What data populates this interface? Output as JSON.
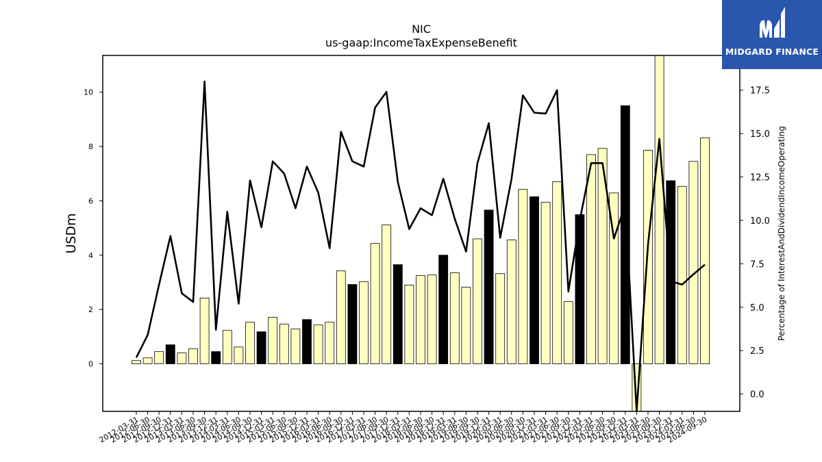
{
  "title": "NIC",
  "subtitle": "us-gaap:IncomeTaxExpenseBenefit",
  "logo": {
    "text": "MIDGARD FINANCE",
    "bg": "#2a56ad"
  },
  "colors": {
    "bar_fill": "#ffffc0",
    "bar_highlight": "#000000",
    "line": "#000000"
  },
  "chart_data": {
    "type": "bar",
    "title": "NIC",
    "subtitle": "us-gaap:IncomeTaxExpenseBenefit",
    "xlabel": "",
    "ylabel": "USDm",
    "y2label": "Percentage of InterestAndDividendIncomeOperating",
    "ylim": [
      -1.75,
      11.35
    ],
    "y2lim": [
      -1.0,
      19.5
    ],
    "yticks": [
      0,
      2,
      4,
      6,
      8,
      10
    ],
    "y2ticks": [
      0.0,
      2.5,
      5.0,
      7.5,
      10.0,
      12.5,
      15.0,
      17.5
    ],
    "categories": [
      "2012-03-31",
      "2012-06-30",
      "2012-09-30",
      "2012-12-31",
      "2013-03-31",
      "2013-06-30",
      "2013-09-30",
      "2013-12-31",
      "2014-03-31",
      "2014-06-30",
      "2014-09-30",
      "2014-12-31",
      "2015-03-31",
      "2015-06-30",
      "2015-09-30",
      "2015-12-31",
      "2016-03-31",
      "2016-06-30",
      "2016-09-30",
      "2016-12-31",
      "2017-03-31",
      "2017-06-30",
      "2017-09-30",
      "2017-12-31",
      "2018-03-31",
      "2018-06-30",
      "2018-09-30",
      "2018-12-31",
      "2019-03-31",
      "2019-06-30",
      "2019-09-30",
      "2019-12-31",
      "2020-03-31",
      "2020-06-30",
      "2020-09-30",
      "2020-12-31",
      "2021-03-31",
      "2021-06-30",
      "2021-09-30",
      "2021-12-31",
      "2022-03-31",
      "2022-06-30",
      "2022-09-30",
      "2022-12-31",
      "2023-03-31",
      "2023-06-30",
      "2023-09-30",
      "2023-12-31",
      "2024-03-31",
      "2024-06-30",
      "2024-09-30"
    ],
    "series": [
      {
        "axis": "left",
        "kind": "bar",
        "values": [
          0.12,
          0.22,
          0.45,
          0.7,
          0.4,
          0.55,
          2.42,
          0.45,
          1.23,
          0.62,
          1.53,
          1.18,
          1.71,
          1.46,
          1.28,
          1.63,
          1.43,
          1.53,
          3.42,
          2.92,
          3.02,
          4.43,
          5.11,
          3.65,
          2.9,
          3.25,
          3.27,
          4.0,
          3.35,
          2.82,
          4.6,
          5.66,
          3.32,
          4.56,
          6.42,
          6.15,
          5.95,
          6.7,
          2.29,
          5.49,
          7.7,
          7.93,
          6.29,
          9.5,
          -1.8,
          7.86,
          11.4,
          6.74,
          6.53,
          7.45,
          8.32
        ],
        "highlight": [
          false,
          false,
          false,
          true,
          false,
          false,
          false,
          true,
          false,
          false,
          false,
          true,
          false,
          false,
          false,
          true,
          false,
          false,
          false,
          true,
          false,
          false,
          false,
          true,
          false,
          false,
          false,
          true,
          false,
          false,
          false,
          true,
          false,
          false,
          false,
          true,
          false,
          false,
          false,
          true,
          false,
          false,
          false,
          true,
          false,
          false,
          false,
          true,
          false,
          false,
          false
        ]
      },
      {
        "axis": "right",
        "kind": "line",
        "values": [
          2.1,
          3.4,
          6.3,
          9.1,
          5.8,
          5.3,
          18.0,
          3.7,
          10.5,
          5.2,
          12.3,
          9.6,
          13.4,
          12.7,
          10.7,
          13.1,
          11.6,
          8.4,
          15.1,
          13.4,
          13.1,
          16.5,
          17.4,
          12.2,
          9.5,
          10.7,
          10.3,
          12.4,
          10.1,
          8.2,
          13.3,
          15.6,
          9.0,
          12.4,
          17.2,
          16.2,
          16.15,
          17.5,
          5.9,
          10.0,
          13.3,
          13.3,
          8.95,
          10.9,
          -1.2,
          8.6,
          14.7,
          6.5,
          6.3,
          6.9,
          7.45
        ]
      }
    ],
    "grid": false,
    "legend": "none"
  }
}
